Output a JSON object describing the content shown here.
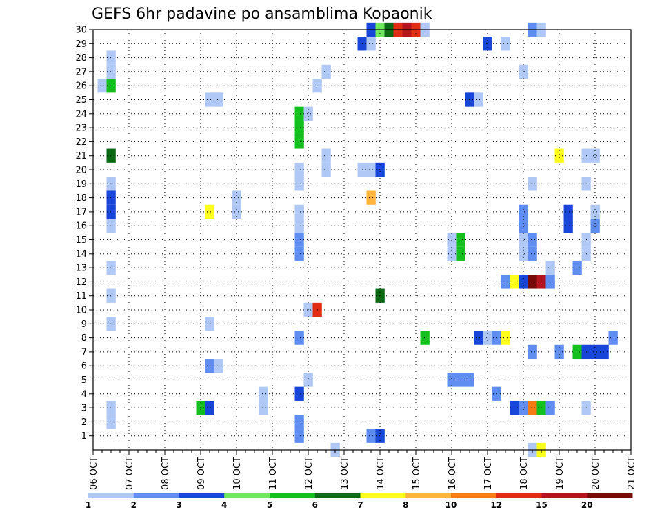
{
  "chart_data": {
    "type": "heatmap",
    "title": "GEFS 6hr padavine po ansamblima Kopaonik",
    "xlabel": "",
    "ylabel": "",
    "x_ticks": [
      "06 OCT",
      "07 OCT",
      "08 OCT",
      "09 OCT",
      "10 OCT",
      "11 OCT",
      "12 OCT",
      "13 OCT",
      "14 OCT",
      "15 OCT",
      "16 OCT",
      "17 OCT",
      "18 OCT",
      "19 OCT",
      "20 OCT",
      "21 OCT"
    ],
    "y_ticks": [
      "1",
      "2",
      "3",
      "4",
      "5",
      "6",
      "7",
      "8",
      "9",
      "10",
      "11",
      "12",
      "13",
      "14",
      "15",
      "16",
      "17",
      "18",
      "19",
      "20",
      "21",
      "22",
      "23",
      "24",
      "25",
      "26",
      "27",
      "28",
      "29",
      "30"
    ],
    "xlim": [
      0,
      60
    ],
    "ylim": [
      0,
      30
    ],
    "grid": true,
    "legend_position": "bottom",
    "legend": {
      "labels": [
        "1",
        "2",
        "3",
        "4",
        "5",
        "6",
        "7",
        "8",
        "10",
        "12",
        "15",
        "20"
      ],
      "colors": [
        "#b0c8f5",
        "#5f8ef0",
        "#1846d8",
        "#70e860",
        "#14c01e",
        "#0c6a14",
        "#ffff1e",
        "#ffb43c",
        "#f57c14",
        "#e12d14",
        "#b4141e",
        "#780a0a"
      ]
    },
    "cells": [
      {
        "m": 30,
        "t": [
          [
            31,
            3
          ],
          [
            32,
            4
          ],
          [
            33,
            6
          ],
          [
            34,
            10
          ],
          [
            35,
            11
          ],
          [
            36,
            10
          ],
          [
            37,
            1
          ],
          [
            49,
            2
          ],
          [
            50,
            1
          ]
        ]
      },
      {
        "m": 29,
        "t": [
          [
            30,
            3
          ],
          [
            31,
            1
          ],
          [
            44,
            3
          ],
          [
            46,
            1
          ]
        ]
      },
      {
        "m": 28,
        "t": [
          [
            2,
            1
          ]
        ]
      },
      {
        "m": 27,
        "t": [
          [
            2,
            1
          ],
          [
            26,
            1
          ],
          [
            48,
            1
          ]
        ]
      },
      {
        "m": 26,
        "t": [
          [
            1,
            1
          ],
          [
            2,
            5
          ],
          [
            25,
            1
          ]
        ]
      },
      {
        "m": 25,
        "t": [
          [
            13,
            1
          ],
          [
            14,
            1
          ],
          [
            42,
            3
          ],
          [
            43,
            1
          ]
        ]
      },
      {
        "m": 24,
        "t": [
          [
            23,
            5
          ],
          [
            24,
            1
          ]
        ]
      },
      {
        "m": 23,
        "t": [
          [
            23,
            5
          ]
        ]
      },
      {
        "m": 22,
        "t": [
          [
            23,
            5
          ]
        ]
      },
      {
        "m": 21,
        "t": [
          [
            2,
            6
          ],
          [
            26,
            1
          ],
          [
            52,
            7
          ],
          [
            55,
            1
          ],
          [
            56,
            1
          ]
        ]
      },
      {
        "m": 20,
        "t": [
          [
            23,
            1
          ],
          [
            26,
            1
          ],
          [
            30,
            1
          ],
          [
            31,
            1
          ],
          [
            32,
            3
          ]
        ]
      },
      {
        "m": 19,
        "t": [
          [
            2,
            1
          ],
          [
            23,
            1
          ],
          [
            49,
            1
          ],
          [
            55,
            1
          ]
        ]
      },
      {
        "m": 18,
        "t": [
          [
            2,
            3
          ],
          [
            16,
            1
          ],
          [
            31,
            8
          ]
        ]
      },
      {
        "m": 17,
        "t": [
          [
            2,
            3
          ],
          [
            16,
            1
          ],
          [
            13,
            7
          ],
          [
            23,
            1
          ],
          [
            48,
            2
          ],
          [
            53,
            3
          ],
          [
            56,
            1
          ]
        ]
      },
      {
        "m": 16,
        "t": [
          [
            2,
            1
          ],
          [
            23,
            1
          ],
          [
            48,
            2
          ],
          [
            53,
            3
          ],
          [
            56,
            2
          ]
        ]
      },
      {
        "m": 15,
        "t": [
          [
            23,
            2
          ],
          [
            40,
            1
          ],
          [
            41,
            5
          ],
          [
            48,
            1
          ],
          [
            49,
            2
          ],
          [
            55,
            1
          ]
        ]
      },
      {
        "m": 14,
        "t": [
          [
            23,
            2
          ],
          [
            40,
            1
          ],
          [
            41,
            5
          ],
          [
            48,
            1
          ],
          [
            49,
            2
          ],
          [
            55,
            1
          ]
        ]
      },
      {
        "m": 13,
        "t": [
          [
            2,
            1
          ],
          [
            51,
            1
          ],
          [
            54,
            2
          ]
        ]
      },
      {
        "m": 12,
        "t": [
          [
            46,
            2
          ],
          [
            47,
            7
          ],
          [
            48,
            3
          ],
          [
            49,
            12
          ],
          [
            50,
            11
          ],
          [
            51,
            2
          ]
        ]
      },
      {
        "m": 11,
        "t": [
          [
            2,
            1
          ],
          [
            32,
            6
          ]
        ]
      },
      {
        "m": 10,
        "t": [
          [
            24,
            1
          ],
          [
            25,
            10
          ]
        ]
      },
      {
        "m": 9,
        "t": [
          [
            2,
            1
          ],
          [
            13,
            1
          ]
        ]
      },
      {
        "m": 8,
        "t": [
          [
            23,
            2
          ],
          [
            37,
            5
          ],
          [
            43,
            3
          ],
          [
            44,
            1
          ],
          [
            45,
            2
          ],
          [
            46,
            7
          ],
          [
            58,
            2
          ]
        ]
      },
      {
        "m": 7,
        "t": [
          [
            49,
            2
          ],
          [
            52,
            2
          ],
          [
            54,
            5
          ],
          [
            55,
            3
          ],
          [
            56,
            3
          ],
          [
            57,
            3
          ]
        ]
      },
      {
        "m": 6,
        "t": [
          [
            13,
            2
          ],
          [
            14,
            1
          ]
        ]
      },
      {
        "m": 5,
        "t": [
          [
            24,
            1
          ],
          [
            40,
            2
          ],
          [
            41,
            2
          ],
          [
            42,
            2
          ]
        ]
      },
      {
        "m": 4,
        "t": [
          [
            19,
            1
          ],
          [
            23,
            3
          ],
          [
            45,
            2
          ]
        ]
      },
      {
        "m": 3,
        "t": [
          [
            2,
            1
          ],
          [
            12,
            5
          ],
          [
            13,
            3
          ],
          [
            19,
            1
          ],
          [
            47,
            3
          ],
          [
            48,
            2
          ],
          [
            49,
            9
          ],
          [
            50,
            5
          ],
          [
            51,
            2
          ],
          [
            55,
            1
          ]
        ]
      },
      {
        "m": 2,
        "t": [
          [
            2,
            1
          ],
          [
            23,
            2
          ]
        ]
      },
      {
        "m": 1,
        "t": [
          [
            23,
            2
          ],
          [
            31,
            2
          ],
          [
            32,
            3
          ]
        ]
      },
      {
        "m": 0,
        "t": [
          [
            27,
            1
          ],
          [
            49,
            1
          ],
          [
            50,
            7
          ]
        ]
      }
    ]
  }
}
